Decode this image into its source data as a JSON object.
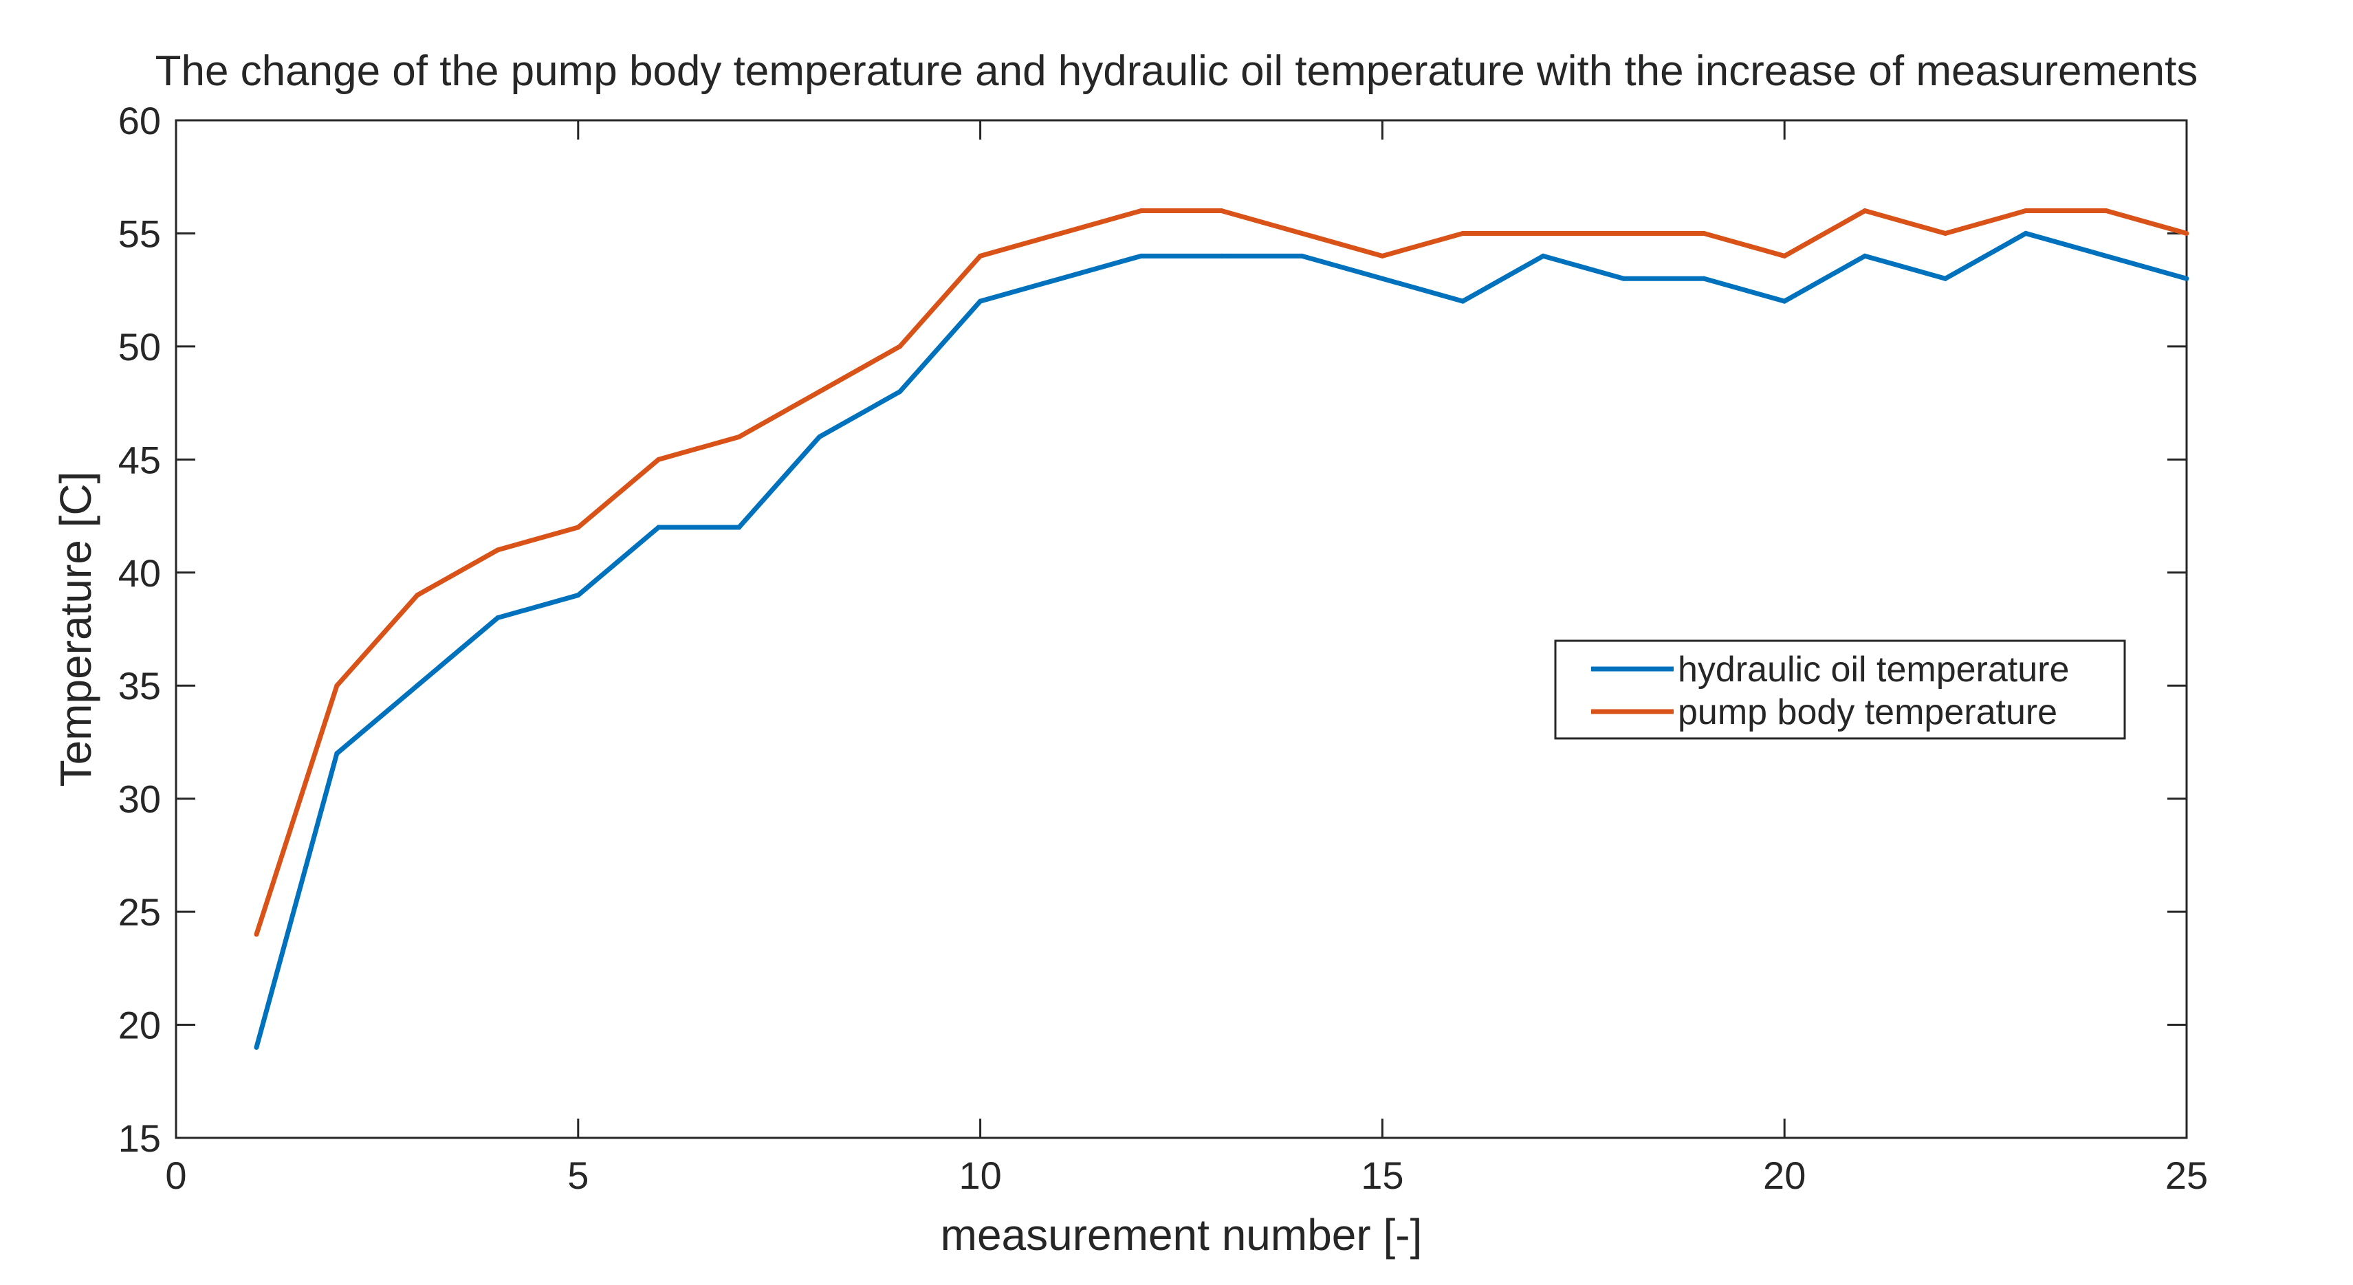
{
  "chart_data": {
    "type": "line",
    "title": "The change of the pump body temperature and hydraulic oil temperature with the increase of measurements",
    "xlabel": "measurement number [-]",
    "ylabel": "Temperature [C]",
    "xlim": [
      0,
      25
    ],
    "ylim": [
      15,
      60
    ],
    "xticks": [
      0,
      5,
      10,
      15,
      20,
      25
    ],
    "yticks": [
      15,
      20,
      25,
      30,
      35,
      40,
      45,
      50,
      55,
      60
    ],
    "grid": false,
    "legend_position": "right-center",
    "x": [
      1,
      2,
      3,
      4,
      5,
      6,
      7,
      8,
      9,
      10,
      11,
      12,
      13,
      14,
      15,
      16,
      17,
      18,
      19,
      20,
      21,
      22,
      23,
      24,
      25
    ],
    "series": [
      {
        "name": "hydraulic oil temperature",
        "color": "#0072BD",
        "values": [
          19,
          32,
          35,
          38,
          39,
          42,
          42,
          46,
          48,
          52,
          53,
          54,
          54,
          54,
          53,
          52,
          54,
          53,
          53,
          52,
          54,
          53,
          55,
          54,
          53
        ]
      },
      {
        "name": "pump body temperature",
        "color": "#D95319",
        "values": [
          24,
          35,
          39,
          41,
          42,
          45,
          46,
          48,
          50,
          54,
          55,
          56,
          56,
          55,
          54,
          55,
          55,
          55,
          55,
          54,
          56,
          55,
          56,
          56,
          55
        ]
      }
    ]
  }
}
